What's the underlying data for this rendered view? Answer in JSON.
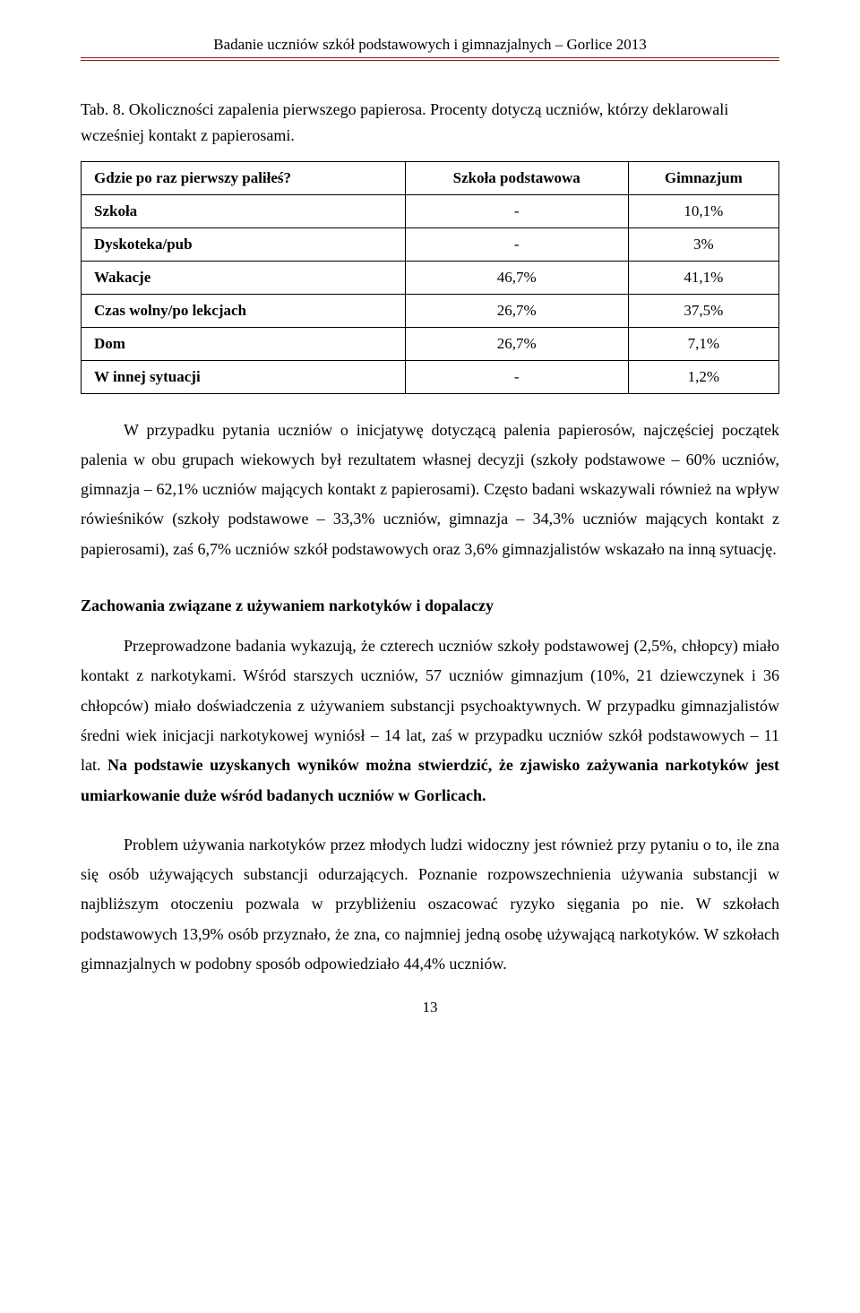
{
  "header": {
    "title": "Badanie uczniów szkół podstawowych i gimnazjalnych – Gorlice 2013"
  },
  "tab8": {
    "caption": "Tab. 8. Okoliczności zapalenia pierwszego papierosa. Procenty dotyczą uczniów, którzy deklarowali wcześniej kontakt z papierosami.",
    "question": "Gdzie po raz pierwszy paliłeś?",
    "col1": "Szkoła podstawowa",
    "col2": "Gimnazjum",
    "rows": [
      {
        "label": "Szkoła",
        "v1": "-",
        "v2": "10,1%"
      },
      {
        "label": "Dyskoteka/pub",
        "v1": "-",
        "v2": "3%"
      },
      {
        "label": "Wakacje",
        "v1": "46,7%",
        "v2": "41,1%"
      },
      {
        "label": "Czas wolny/po lekcjach",
        "v1": "26,7%",
        "v2": "37,5%"
      },
      {
        "label": "Dom",
        "v1": "26,7%",
        "v2": "7,1%"
      },
      {
        "label": "W innej sytuacji",
        "v1": "-",
        "v2": "1,2%"
      }
    ]
  },
  "para1": "W przypadku pytania uczniów o inicjatywę dotyczącą palenia papierosów, najczęściej początek palenia w obu grupach wiekowych był rezultatem własnej decyzji (szkoły podstawowe – 60% uczniów, gimnazja – 62,1% uczniów mających kontakt z papierosami). Często badani wskazywali również na wpływ rówieśników (szkoły podstawowe – 33,3% uczniów, gimnazja – 34,3% uczniów mających kontakt z papierosami), zaś 6,7% uczniów szkół podstawowych oraz 3,6% gimnazjalistów wskazało na inną sytuację.",
  "section2": {
    "title": "Zachowania związane z używaniem narkotyków i dopalaczy",
    "p1a": "Przeprowadzone badania wykazują, że czterech uczniów szkoły podstawowej (2,5%, chłopcy) miało kontakt z narkotykami. Wśród starszych uczniów, 57 uczniów gimnazjum (10%, 21 dziewczynek i 36 chłopców) miało doświadczenia z używaniem substancji psychoaktywnych. W przypadku gimnazjalistów średni wiek inicjacji narkotykowej wyniósł – 14 lat, zaś w przypadku uczniów szkół podstawowych – 11 lat. ",
    "p1b": "Na podstawie uzyskanych wyników można stwierdzić, że zjawisko zażywania narkotyków jest umiarkowanie duże wśród badanych uczniów w Gorlicach.",
    "p2": "Problem używania narkotyków przez młodych ludzi widoczny jest również przy pytaniu o to, ile zna się osób używających substancji odurzających. Poznanie rozpowszechnienia używania substancji w najbliższym otoczeniu pozwala w przybliżeniu oszacować ryzyko sięgania po nie. W szkołach podstawowych 13,9% osób przyznało, że zna, co najmniej jedną osobę używającą narkotyków. W szkołach gimnazjalnych w podobny sposób odpowiedziało 44,4% uczniów."
  },
  "page_number": "13"
}
